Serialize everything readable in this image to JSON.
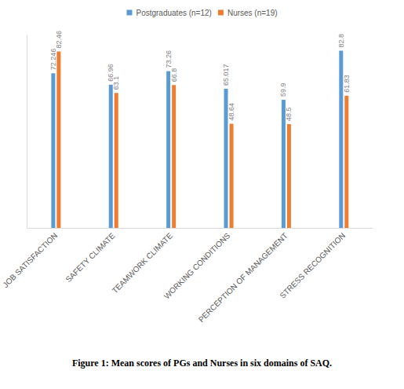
{
  "chart_data": {
    "type": "bar",
    "title": "Figure 1: Mean scores of PGs and Nurses in six domains of SAQ.",
    "categories": [
      "JOB SATISFACTION",
      "SAFETY CLIMATE",
      "TEAMWORK CLIMATE",
      "WORKING CONDITIONS",
      "PERCEPTION OF MANAGEMENT",
      "STRESS RECOGNITION"
    ],
    "series": [
      {
        "name": "Postgraduates (n=12)",
        "color": "#5b9bd5",
        "values": [
          72.246,
          66.96,
          73.26,
          65.017,
          59.9,
          82.8
        ]
      },
      {
        "name": "Nurses (n=19)",
        "color": "#ed7d31",
        "values": [
          82.46,
          63.1,
          66.8,
          48.64,
          48.5,
          61.83
        ]
      }
    ],
    "ylim": [
      0,
      90
    ],
    "grid": false,
    "legend": "top",
    "data_labels": true,
    "tick_labels": "x"
  }
}
